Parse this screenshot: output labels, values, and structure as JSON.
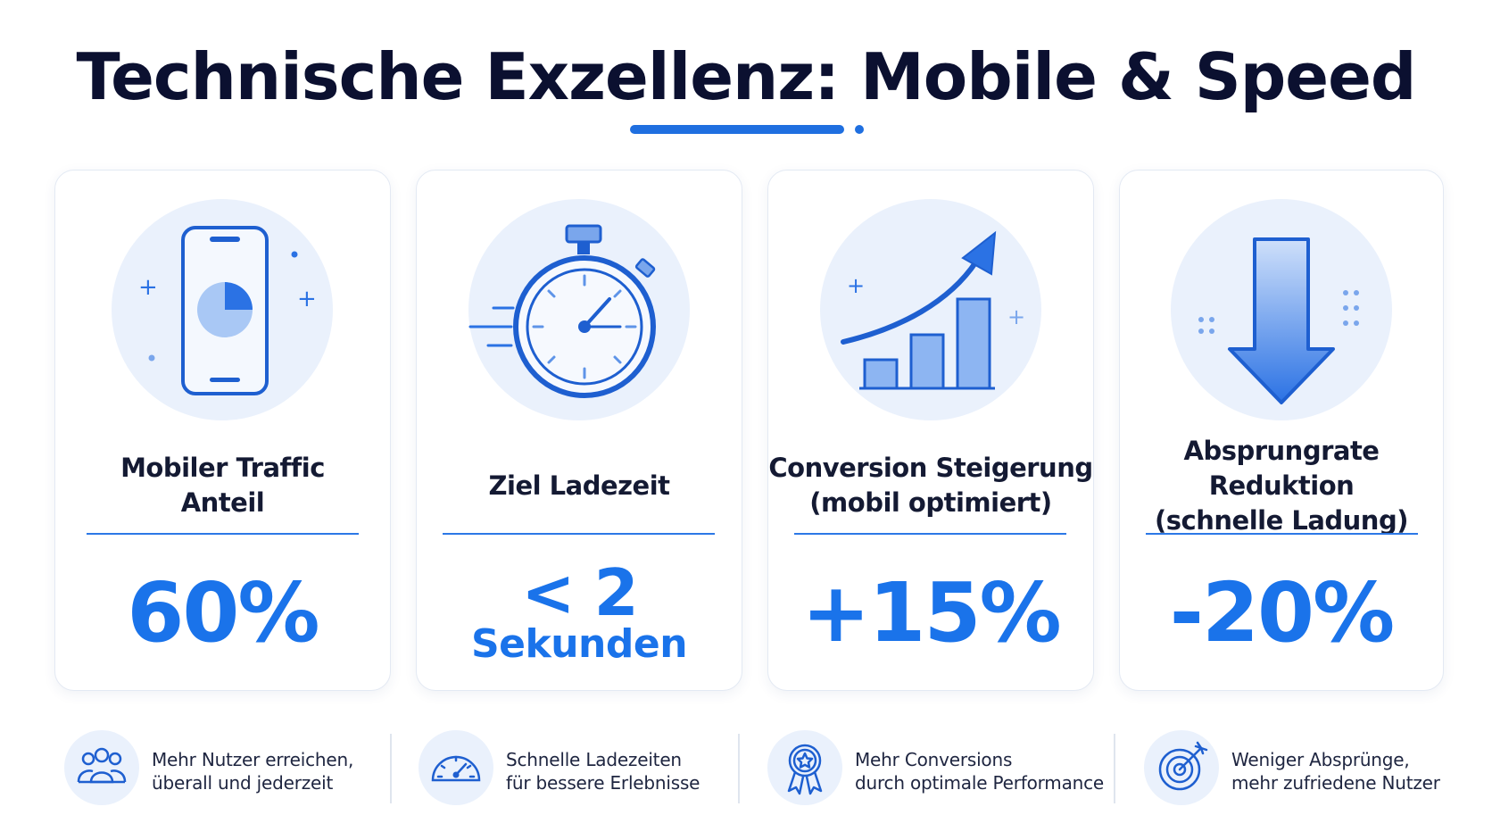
{
  "title": "Technische Exzellenz: Mobile & Speed",
  "colors": {
    "accent": "#1a73ea",
    "dark": "#0b1030",
    "tint": "#eaf1fc"
  },
  "cards": [
    {
      "icon": "smartphone-pie-icon",
      "label": "Mobiler Traffic\nAnteil",
      "value": "60%"
    },
    {
      "icon": "stopwatch-icon",
      "label": "Ziel Ladezeit",
      "value_line1": "< 2",
      "value_line2": "Sekunden"
    },
    {
      "icon": "growth-chart-icon",
      "label": "Conversion Steigerung\n(mobil optimiert)",
      "value": "+15%"
    },
    {
      "icon": "down-arrow-icon",
      "label": "Absprungrate Reduktion\n(schnelle Ladung)",
      "value": "-20%"
    }
  ],
  "features": [
    {
      "icon": "users-icon",
      "line1": "Mehr Nutzer erreichen,",
      "line2": "überall und jederzeit"
    },
    {
      "icon": "speedometer-icon",
      "line1": "Schnelle Ladezeiten",
      "line2": "für bessere Erlebnisse"
    },
    {
      "icon": "award-badge-icon",
      "line1": "Mehr Conversions",
      "line2": "durch optimale Performance"
    },
    {
      "icon": "target-icon",
      "line1": "Weniger Absprünge,",
      "line2": "mehr zufriedene Nutzer"
    }
  ]
}
